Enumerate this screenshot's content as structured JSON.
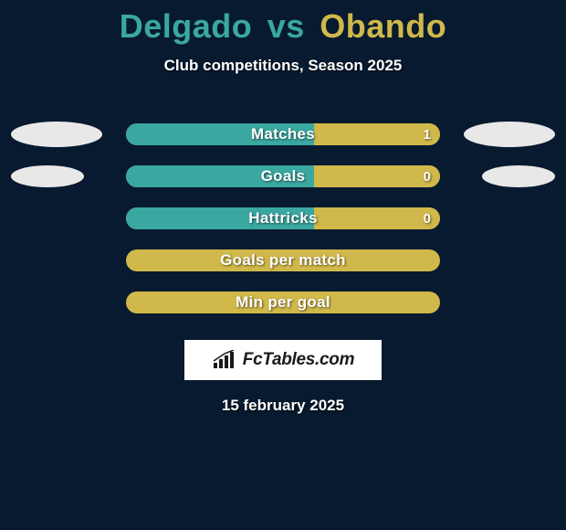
{
  "background_color": "#071a2f",
  "title": {
    "player1": "Delgado",
    "vs": "vs",
    "player2": "Obando",
    "player1_color": "#3aa7a0",
    "vs_color": "#3aa7a0",
    "player2_color": "#d0b84a"
  },
  "subtitle": {
    "text": "Club competitions, Season 2025",
    "color": "#ffffff"
  },
  "row_colors": {
    "empty_bar_bg": "#071a2f",
    "empty_bar_border": "#d0b84a",
    "left_fill": "#3aa7a0",
    "right_fill": "#d0b84a",
    "label_color": "#ffffff",
    "value_color": "#ffffff"
  },
  "side_ellipse": {
    "left_color": "#e8e8e8",
    "right_color": "#e8e8e8",
    "left_small_color": "#e8e8e8",
    "right_small_color": "#e8e8e8"
  },
  "rows": [
    {
      "label": "Matches",
      "left_value": "",
      "right_value": "1",
      "left_pct": 60,
      "right_pct": 40,
      "show_ellipses": true,
      "ellipse_width": 100,
      "ellipse_height": 28,
      "filled": true
    },
    {
      "label": "Goals",
      "left_value": "",
      "right_value": "0",
      "left_pct": 60,
      "right_pct": 40,
      "show_ellipses": true,
      "ellipse_width": 80,
      "ellipse_height": 24,
      "filled": true
    },
    {
      "label": "Hattricks",
      "left_value": "",
      "right_value": "0",
      "left_pct": 60,
      "right_pct": 40,
      "show_ellipses": false,
      "filled": true
    },
    {
      "label": "Goals per match",
      "left_value": "",
      "right_value": "",
      "left_pct": 0,
      "right_pct": 0,
      "show_ellipses": false,
      "filled": false
    },
    {
      "label": "Min per goal",
      "left_value": "",
      "right_value": "",
      "left_pct": 0,
      "right_pct": 0,
      "show_ellipses": false,
      "filled": false
    }
  ],
  "logo": {
    "bg_color": "#ffffff",
    "text_prefix": "Fc",
    "text_main": "Tables",
    "text_suffix": ".com",
    "text_color": "#1a1a1a",
    "icon_color": "#1a1a1a"
  },
  "footer_date": {
    "text": "15 february 2025",
    "color": "#ffffff"
  }
}
